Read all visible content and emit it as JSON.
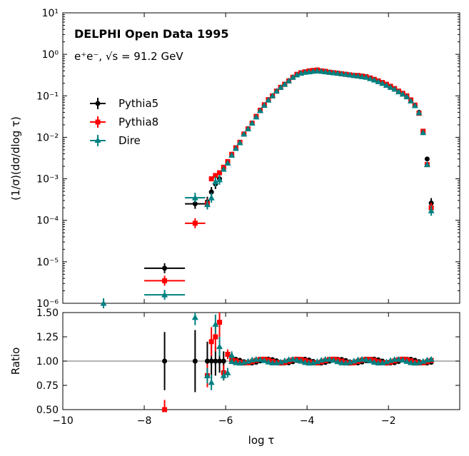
{
  "chart_data": {
    "type": "scatter",
    "title": "DELPHI Open Data 1995",
    "subtitle": "e⁺e⁻, √s = 91.2 GeV",
    "xlabel": "log τ",
    "ylabel": "(1/σ)(dσ/dlog τ)",
    "ratio_ylabel": "Ratio",
    "xlim": [
      -10,
      -0.25
    ],
    "ylim": [
      1e-06,
      10
    ],
    "ratio_ylim": [
      0.5,
      1.5
    ],
    "x_ticks": [
      "−10",
      "−8",
      "−6",
      "−4",
      "−2"
    ],
    "x_tick_values": [
      -10,
      -8,
      -6,
      -4,
      -2
    ],
    "y_ticks": [
      "10⁻⁶",
      "10⁻⁵",
      "10⁻⁴",
      "10⁻³",
      "10⁻²",
      "10⁻¹",
      "10⁰",
      "10¹"
    ],
    "y_tick_exponents": [
      -6,
      -5,
      -4,
      -3,
      -2,
      -1,
      0,
      1
    ],
    "ratio_ticks": [
      "0.50",
      "0.75",
      "1.00",
      "1.25",
      "1.50"
    ],
    "ratio_tick_values": [
      0.5,
      0.75,
      1.0,
      1.25,
      1.5
    ],
    "legend_position": "upper-left",
    "series": [
      {
        "name": "Pythia5",
        "color": "#000000",
        "marker": "circle",
        "x": [
          -7.5,
          -6.75,
          -6.45,
          -6.35,
          -6.25,
          -6.15,
          -6.05,
          -5.95,
          -5.85,
          -5.75,
          -5.65,
          -5.55,
          -5.45,
          -5.35,
          -5.25,
          -5.15,
          -5.05,
          -4.95,
          -4.85,
          -4.75,
          -4.65,
          -4.55,
          -4.45,
          -4.35,
          -4.25,
          -4.15,
          -4.05,
          -3.95,
          -3.85,
          -3.75,
          -3.65,
          -3.55,
          -3.45,
          -3.35,
          -3.25,
          -3.15,
          -3.05,
          -2.95,
          -2.85,
          -2.75,
          -2.65,
          -2.55,
          -2.45,
          -2.35,
          -2.25,
          -2.15,
          -2.05,
          -1.95,
          -1.85,
          -1.75,
          -1.65,
          -1.55,
          -1.45,
          -1.35,
          -1.25,
          -1.15,
          -1.05,
          -0.95,
          -0.85
        ],
        "y": [
          7e-06,
          0.00025,
          0.00028,
          0.00048,
          0.00075,
          0.001,
          0.0018,
          0.0025,
          0.0038,
          0.0055,
          0.0075,
          0.012,
          0.016,
          0.022,
          0.032,
          0.045,
          0.06,
          0.08,
          0.1,
          0.13,
          0.16,
          0.19,
          0.23,
          0.28,
          0.32,
          0.35,
          0.37,
          0.38,
          0.39,
          0.4,
          0.39,
          0.38,
          0.37,
          0.36,
          0.35,
          0.34,
          0.33,
          0.32,
          0.31,
          0.3,
          0.29,
          0.28,
          0.26,
          0.24,
          0.22,
          0.2,
          0.18,
          0.16,
          0.145,
          0.125,
          0.11,
          0.095,
          0.075,
          0.058,
          0.04,
          0.013,
          0.003,
          0.00026,
          0
        ],
        "xerr": [
          0.5,
          0.25,
          0,
          0,
          0,
          0,
          0,
          0,
          0,
          0,
          0,
          0,
          0,
          0,
          0,
          0,
          0,
          0,
          0,
          0,
          0,
          0,
          0,
          0,
          0,
          0,
          0,
          0,
          0,
          0,
          0,
          0,
          0,
          0,
          0,
          0,
          0,
          0,
          0,
          0,
          0,
          0,
          0,
          0,
          0,
          0,
          0,
          0,
          0,
          0,
          0,
          0,
          0,
          0,
          0,
          0,
          0,
          0,
          0
        ],
        "ratio_x": [
          -7.5,
          -6.75,
          -6.45,
          -6.35,
          -6.25,
          -6.15,
          -6.05
        ],
        "ratio_y": [
          1.0,
          1.0,
          1.0,
          1.0,
          1.0,
          1.0,
          1.0
        ],
        "ratio_yerr": [
          0.3,
          0.32,
          0.2,
          0.18,
          0.15,
          0.12,
          0.1
        ]
      },
      {
        "name": "Pythia8",
        "color": "#ff0000",
        "marker": "square",
        "x": [
          -7.5,
          -6.75,
          -6.45,
          -6.35,
          -6.25,
          -6.15,
          -6.05,
          -5.95,
          -5.85,
          -5.75,
          -5.65,
          -5.55,
          -5.45,
          -5.35,
          -5.25,
          -5.15,
          -5.05,
          -4.95,
          -4.85,
          -4.75,
          -4.65,
          -4.55,
          -4.45,
          -4.35,
          -4.25,
          -4.15,
          -4.05,
          -3.95,
          -3.85,
          -3.75,
          -3.65,
          -3.55,
          -3.45,
          -3.35,
          -3.25,
          -3.15,
          -3.05,
          -2.95,
          -2.85,
          -2.75,
          -2.65,
          -2.55,
          -2.45,
          -2.35,
          -2.25,
          -2.15,
          -2.05,
          -1.95,
          -1.85,
          -1.75,
          -1.65,
          -1.55,
          -1.45,
          -1.35,
          -1.25,
          -1.15,
          -1.05,
          -0.95,
          -0.85
        ],
        "y": [
          3.5e-06,
          8.5e-05,
          0.00025,
          0.001,
          0.0012,
          0.0014,
          0.0019,
          0.0026,
          0.0039,
          0.0056,
          0.0076,
          0.012,
          0.016,
          0.022,
          0.032,
          0.045,
          0.061,
          0.081,
          0.1,
          0.13,
          0.16,
          0.19,
          0.23,
          0.28,
          0.33,
          0.36,
          0.38,
          0.4,
          0.41,
          0.42,
          0.4,
          0.39,
          0.37,
          0.36,
          0.35,
          0.34,
          0.33,
          0.32,
          0.31,
          0.31,
          0.3,
          0.29,
          0.27,
          0.25,
          0.23,
          0.21,
          0.19,
          0.17,
          0.15,
          0.13,
          0.115,
          0.1,
          0.08,
          0.06,
          0.038,
          0.014,
          0.0022,
          0.0002,
          0
        ],
        "xerr": [
          0.5,
          0.25,
          0,
          0,
          0,
          0,
          0,
          0,
          0,
          0,
          0,
          0,
          0,
          0,
          0,
          0,
          0,
          0,
          0,
          0,
          0,
          0,
          0,
          0,
          0,
          0,
          0,
          0,
          0,
          0,
          0,
          0,
          0,
          0,
          0,
          0,
          0,
          0,
          0,
          0,
          0,
          0,
          0,
          0,
          0,
          0,
          0,
          0,
          0,
          0,
          0,
          0,
          0,
          0,
          0,
          0,
          0,
          0,
          0
        ],
        "ratio_x": [
          -7.5,
          -6.45,
          -6.35,
          -6.25,
          -6.15,
          -6.05,
          -5.95
        ],
        "ratio_y": [
          0.5,
          0.85,
          1.2,
          1.25,
          1.4,
          0.88,
          1.07
        ],
        "ratio_yerr": [
          0.1,
          0.12,
          0.15,
          0.15,
          0.15,
          0.08,
          0.05
        ]
      },
      {
        "name": "Dire",
        "color": "#008080",
        "marker": "triangle",
        "x": [
          -9.0,
          -7.5,
          -6.75,
          -6.45,
          -6.35,
          -6.25,
          -6.15,
          -6.05,
          -5.95,
          -5.85,
          -5.75,
          -5.65,
          -5.55,
          -5.45,
          -5.35,
          -5.25,
          -5.15,
          -5.05,
          -4.95,
          -4.85,
          -4.75,
          -4.65,
          -4.55,
          -4.45,
          -4.35,
          -4.25,
          -4.15,
          -4.05,
          -3.95,
          -3.85,
          -3.75,
          -3.65,
          -3.55,
          -3.45,
          -3.35,
          -3.25,
          -3.15,
          -3.05,
          -2.95,
          -2.85,
          -2.75,
          -2.65,
          -2.55,
          -2.45,
          -2.35,
          -2.25,
          -2.15,
          -2.05,
          -1.95,
          -1.85,
          -1.75,
          -1.65,
          -1.55,
          -1.45,
          -1.35,
          -1.25,
          -1.15,
          -1.05,
          -0.95,
          -0.85
        ],
        "y": [
          1e-06,
          1.6e-06,
          0.00035,
          0.00024,
          0.00035,
          0.00085,
          0.00095,
          0.0017,
          0.0024,
          0.0037,
          0.0054,
          0.0074,
          0.012,
          0.016,
          0.022,
          0.031,
          0.044,
          0.059,
          0.079,
          0.1,
          0.13,
          0.16,
          0.19,
          0.23,
          0.28,
          0.32,
          0.35,
          0.37,
          0.38,
          0.39,
          0.4,
          0.39,
          0.38,
          0.37,
          0.36,
          0.35,
          0.34,
          0.33,
          0.32,
          0.31,
          0.3,
          0.29,
          0.28,
          0.26,
          0.24,
          0.22,
          0.2,
          0.18,
          0.16,
          0.145,
          0.125,
          0.11,
          0.095,
          0.075,
          0.058,
          0.039,
          0.013,
          0.0022,
          0.00017,
          0
        ],
        "xerr": [
          0,
          0.5,
          0.25,
          0,
          0,
          0,
          0,
          0,
          0,
          0,
          0,
          0,
          0,
          0,
          0,
          0,
          0,
          0,
          0,
          0,
          0,
          0,
          0,
          0,
          0,
          0,
          0,
          0,
          0,
          0,
          0,
          0,
          0,
          0,
          0,
          0,
          0,
          0,
          0,
          0,
          0,
          0,
          0,
          0,
          0,
          0,
          0,
          0,
          0,
          0,
          0,
          0,
          0,
          0,
          0,
          0,
          0,
          0,
          0,
          0
        ],
        "ratio_x": [
          -6.75,
          -6.45,
          -6.35,
          -6.25,
          -6.15,
          -6.05,
          -5.95,
          -5.85
        ],
        "ratio_y": [
          1.45,
          0.85,
          0.78,
          1.38,
          1.15,
          0.85,
          0.88,
          1.06
        ],
        "ratio_yerr": [
          0.08,
          0.08,
          0.08,
          0.1,
          0.1,
          0.05,
          0.05,
          0.04
        ]
      }
    ]
  }
}
